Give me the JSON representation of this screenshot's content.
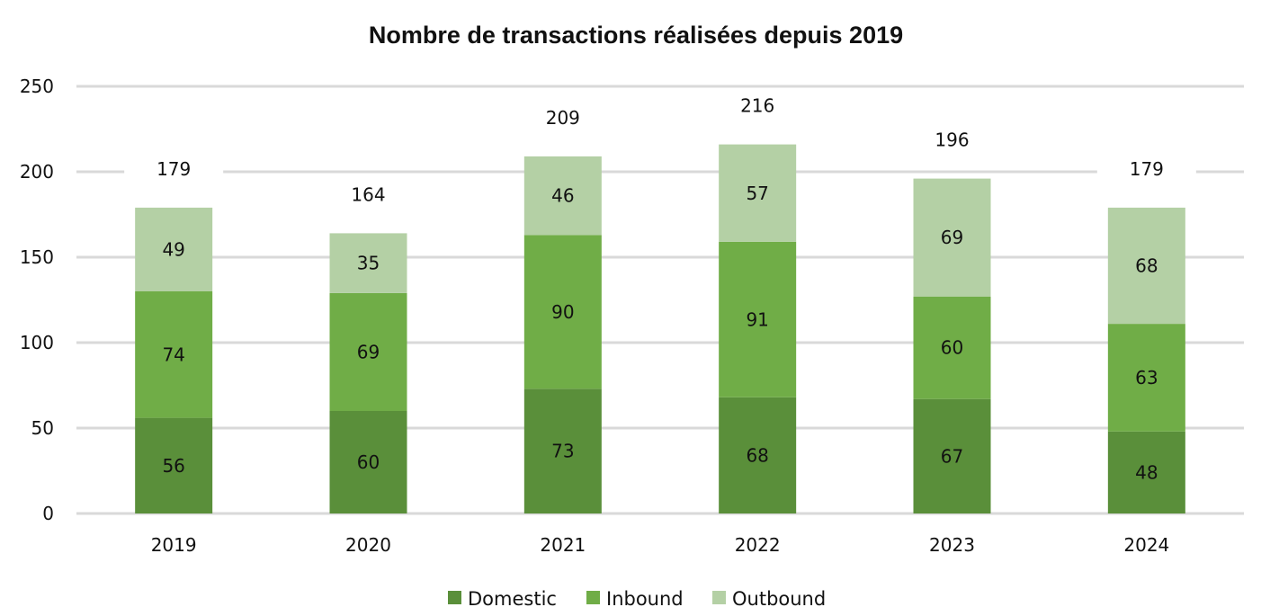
{
  "chart_data": {
    "type": "bar",
    "stacked": true,
    "title": "Nombre de transactions réalisées depuis 2019",
    "xlabel": "",
    "ylabel": "",
    "ylim": [
      0,
      250
    ],
    "yticks": [
      0,
      50,
      100,
      150,
      200,
      250
    ],
    "grid": true,
    "legend_position": "bottom",
    "categories": [
      "2019",
      "2020",
      "2021",
      "2022",
      "2023",
      "2024"
    ],
    "series": [
      {
        "name": "Domestic",
        "color": "#5a8f3a",
        "values": [
          56,
          60,
          73,
          68,
          67,
          48
        ]
      },
      {
        "name": "Inbound",
        "color": "#70ad47",
        "values": [
          74,
          69,
          90,
          91,
          60,
          63
        ]
      },
      {
        "name": "Outbound",
        "color": "#b4d0a5",
        "values": [
          49,
          35,
          46,
          57,
          69,
          68
        ]
      }
    ],
    "totals": [
      179,
      164,
      209,
      216,
      196,
      179
    ]
  }
}
